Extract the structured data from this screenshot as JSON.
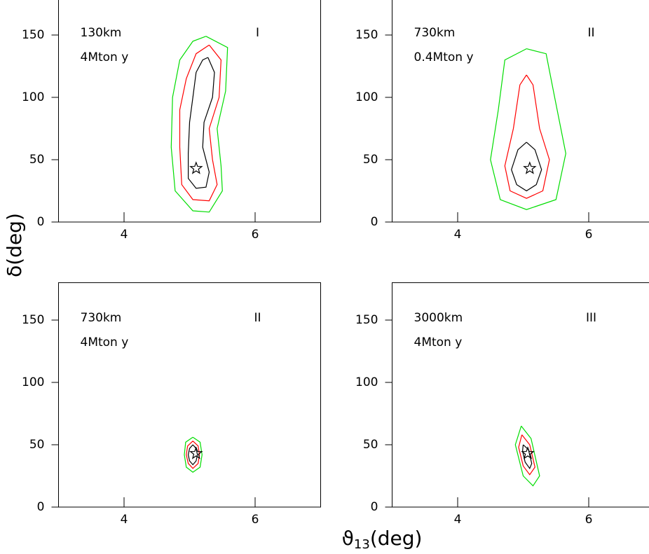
{
  "chart_data": [
    {
      "type": "contour",
      "distance": "130km",
      "exposure": "4Mton y",
      "region": "I",
      "xlim": [
        3,
        7
      ],
      "ylim": [
        0,
        180
      ],
      "xticks": [
        4,
        6
      ],
      "yticks": [
        0,
        50,
        100,
        150
      ],
      "marker": {
        "x": 5.1,
        "y": 43
      },
      "series": [
        {
          "color": "#000000",
          "x": [
            5.28,
            5.38,
            5.35,
            5.22,
            5.2,
            5.3,
            5.25,
            5.1,
            4.98,
            4.98,
            5.0,
            5.05,
            5.1,
            5.2,
            5.28
          ],
          "y": [
            132,
            120,
            100,
            80,
            60,
            40,
            28,
            27,
            35,
            55,
            80,
            100,
            120,
            130,
            132
          ]
        },
        {
          "color": "#ff0000",
          "x": [
            5.3,
            5.48,
            5.45,
            5.3,
            5.35,
            5.42,
            5.3,
            5.05,
            4.88,
            4.85,
            4.85,
            4.95,
            5.1,
            5.3
          ],
          "y": [
            142,
            130,
            100,
            75,
            50,
            30,
            17,
            18,
            30,
            60,
            90,
            115,
            135,
            142
          ]
        },
        {
          "color": "#00dd00",
          "x": [
            5.25,
            5.58,
            5.55,
            5.42,
            5.48,
            5.5,
            5.3,
            5.05,
            4.78,
            4.72,
            4.74,
            4.85,
            5.05,
            5.25
          ],
          "y": [
            149,
            140,
            105,
            75,
            45,
            25,
            8,
            9,
            25,
            60,
            100,
            130,
            145,
            149
          ]
        }
      ]
    },
    {
      "type": "contour",
      "distance": "730km",
      "exposure": "0.4Mton y",
      "region": "II",
      "xlim": [
        3,
        7
      ],
      "ylim": [
        0,
        180
      ],
      "xticks": [
        4,
        6
      ],
      "yticks": [
        0,
        50,
        100,
        150
      ],
      "marker": {
        "x": 5.1,
        "y": 43
      },
      "series": [
        {
          "color": "#000000",
          "x": [
            5.05,
            5.18,
            5.28,
            5.2,
            5.05,
            4.9,
            4.82,
            4.92,
            5.05
          ],
          "y": [
            64,
            58,
            42,
            30,
            25,
            30,
            42,
            58,
            64
          ]
        },
        {
          "color": "#ff0000",
          "x": [
            5.05,
            5.15,
            5.25,
            5.4,
            5.3,
            5.05,
            4.8,
            4.72,
            4.85,
            4.95,
            5.05
          ],
          "y": [
            118,
            110,
            75,
            50,
            25,
            19,
            25,
            45,
            75,
            110,
            118
          ]
        },
        {
          "color": "#00dd00",
          "x": [
            5.05,
            5.35,
            5.48,
            5.65,
            5.5,
            5.05,
            4.65,
            4.5,
            4.62,
            4.72,
            5.05
          ],
          "y": [
            139,
            135,
            100,
            55,
            18,
            10,
            18,
            50,
            90,
            130,
            139
          ]
        }
      ]
    },
    {
      "type": "contour",
      "distance": "730km",
      "exposure": "4Mton y",
      "region": "II",
      "xlim": [
        3,
        7
      ],
      "ylim": [
        0,
        180
      ],
      "xticks": [
        4,
        6
      ],
      "yticks": [
        0,
        50,
        100,
        150
      ],
      "marker": {
        "x": 5.1,
        "y": 43
      },
      "series": [
        {
          "color": "#000000",
          "x": [
            5.05,
            5.1,
            5.12,
            5.1,
            5.05,
            5.0,
            4.98,
            5.0,
            5.05
          ],
          "y": [
            50,
            47,
            42,
            37,
            34,
            37,
            42,
            47,
            50
          ]
        },
        {
          "color": "#ff0000",
          "x": [
            5.05,
            5.13,
            5.15,
            5.13,
            5.05,
            4.98,
            4.95,
            4.97,
            5.05
          ],
          "y": [
            53,
            49,
            42,
            35,
            31,
            35,
            42,
            49,
            53
          ]
        },
        {
          "color": "#00dd00",
          "x": [
            5.05,
            5.16,
            5.19,
            5.16,
            5.05,
            4.95,
            4.92,
            4.94,
            5.05
          ],
          "y": [
            56,
            52,
            42,
            32,
            28,
            32,
            42,
            52,
            56
          ]
        }
      ]
    },
    {
      "type": "contour",
      "distance": "3000km",
      "exposure": "4Mton y",
      "region": "III",
      "xlim": [
        3,
        7
      ],
      "ylim": [
        0,
        180
      ],
      "xticks": [
        4,
        6
      ],
      "yticks": [
        0,
        50,
        100,
        150
      ],
      "marker": {
        "x": 5.07,
        "y": 43
      },
      "series": [
        {
          "color": "#000000",
          "x": [
            5.0,
            5.08,
            5.13,
            5.1,
            5.03,
            4.99,
            5.0
          ],
          "y": [
            50,
            46,
            35,
            31,
            36,
            45,
            50
          ]
        },
        {
          "color": "#ff0000",
          "x": [
            4.98,
            5.1,
            5.18,
            5.1,
            5.0,
            4.93,
            4.98
          ],
          "y": [
            58,
            50,
            32,
            26,
            33,
            48,
            58
          ]
        },
        {
          "color": "#00dd00",
          "x": [
            4.97,
            5.12,
            5.25,
            5.15,
            5.0,
            4.88,
            4.97
          ],
          "y": [
            65,
            55,
            25,
            17,
            25,
            50,
            65
          ]
        }
      ]
    }
  ],
  "ylabel": "δ(deg)",
  "xlabel": {
    "symbol": "ϑ",
    "sub": "13",
    "unit": "(deg)"
  }
}
